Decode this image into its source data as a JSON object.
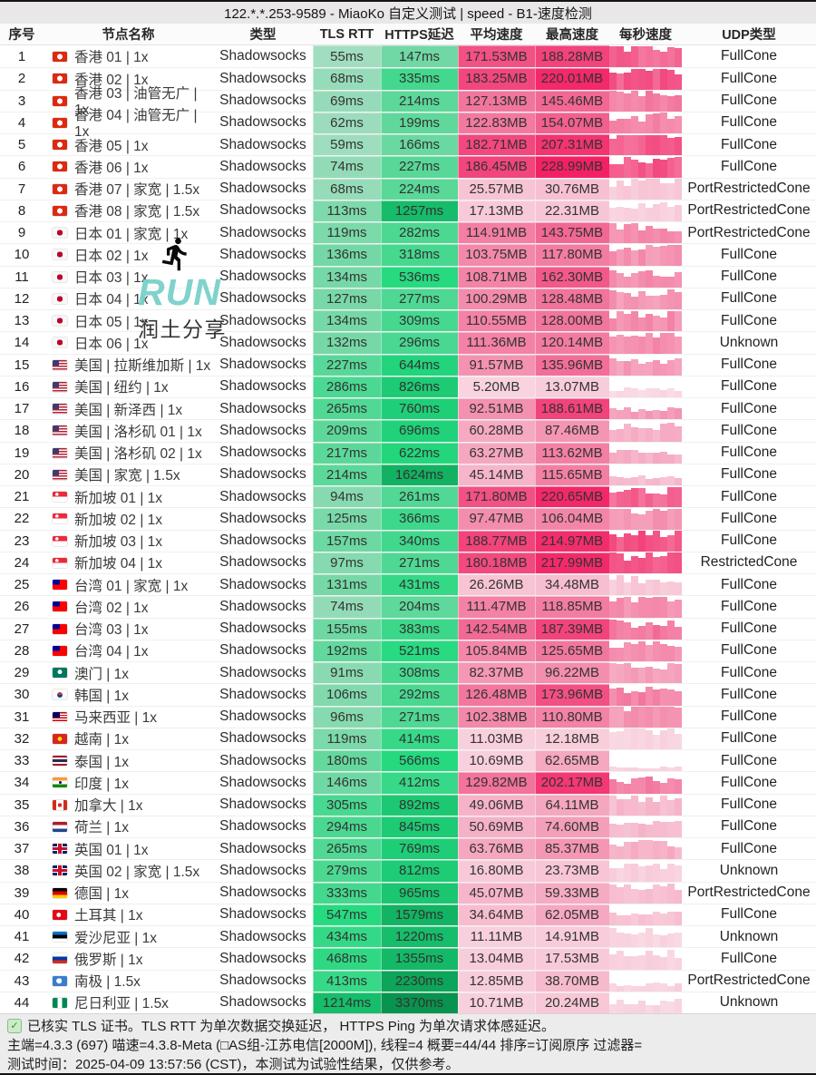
{
  "title": "122.*.*.253-9589 - MiaoKo 自定义测试 | speed - B1-速度检测",
  "columns": [
    {
      "key": "seq",
      "label": "序号"
    },
    {
      "key": "name",
      "label": "节点名称"
    },
    {
      "key": "type",
      "label": "类型"
    },
    {
      "key": "tls",
      "label": "TLS RTT"
    },
    {
      "key": "https",
      "label": "HTTPS延迟"
    },
    {
      "key": "avg",
      "label": "平均速度"
    },
    {
      "key": "max",
      "label": "最高速度"
    },
    {
      "key": "bars",
      "label": "每秒速度"
    },
    {
      "key": "udp",
      "label": "UDP类型"
    }
  ],
  "rows": [
    {
      "seq": 1,
      "flag": "hk",
      "name": "香港 01 | 1x",
      "type": "Shadowsocks",
      "tls": "55ms",
      "https": "147ms",
      "avg": "171.53MB",
      "max": "188.28MB",
      "udp": "FullCone"
    },
    {
      "seq": 2,
      "flag": "hk",
      "name": "香港 02 | 1x",
      "type": "Shadowsocks",
      "tls": "68ms",
      "https": "335ms",
      "avg": "183.25MB",
      "max": "220.01MB",
      "udp": "FullCone"
    },
    {
      "seq": 3,
      "flag": "hk",
      "name": "香港 03 | 油管无广 | 1x",
      "type": "Shadowsocks",
      "tls": "69ms",
      "https": "214ms",
      "avg": "127.13MB",
      "max": "145.46MB",
      "udp": "FullCone"
    },
    {
      "seq": 4,
      "flag": "hk",
      "name": "香港 04 | 油管无广 | 1x",
      "type": "Shadowsocks",
      "tls": "62ms",
      "https": "199ms",
      "avg": "122.83MB",
      "max": "154.07MB",
      "udp": "FullCone"
    },
    {
      "seq": 5,
      "flag": "hk",
      "name": "香港 05 | 1x",
      "type": "Shadowsocks",
      "tls": "59ms",
      "https": "166ms",
      "avg": "182.71MB",
      "max": "207.31MB",
      "udp": "FullCone"
    },
    {
      "seq": 6,
      "flag": "hk",
      "name": "香港 06 | 1x",
      "type": "Shadowsocks",
      "tls": "74ms",
      "https": "227ms",
      "avg": "186.45MB",
      "max": "228.99MB",
      "udp": "FullCone"
    },
    {
      "seq": 7,
      "flag": "hk",
      "name": "香港 07 | 家宽 | 1.5x",
      "type": "Shadowsocks",
      "tls": "68ms",
      "https": "224ms",
      "avg": "25.57MB",
      "max": "30.76MB",
      "udp": "PortRestrictedCone"
    },
    {
      "seq": 8,
      "flag": "hk",
      "name": "香港 08 | 家宽 | 1.5x",
      "type": "Shadowsocks",
      "tls": "113ms",
      "https": "1257ms",
      "avg": "17.13MB",
      "max": "22.31MB",
      "udp": "PortRestrictedCone"
    },
    {
      "seq": 9,
      "flag": "jp",
      "name": "日本 01 | 家宽 | 1x",
      "type": "Shadowsocks",
      "tls": "119ms",
      "https": "282ms",
      "avg": "114.91MB",
      "max": "143.75MB",
      "udp": "PortRestrictedCone"
    },
    {
      "seq": 10,
      "flag": "jp",
      "name": "日本 02 | 1x",
      "type": "Shadowsocks",
      "tls": "136ms",
      "https": "318ms",
      "avg": "103.75MB",
      "max": "117.80MB",
      "udp": "FullCone"
    },
    {
      "seq": 11,
      "flag": "jp",
      "name": "日本 03 | 1x",
      "type": "Shadowsocks",
      "tls": "134ms",
      "https": "536ms",
      "avg": "108.71MB",
      "max": "162.30MB",
      "udp": "FullCone"
    },
    {
      "seq": 12,
      "flag": "jp",
      "name": "日本 04 | 1x",
      "type": "Shadowsocks",
      "tls": "127ms",
      "https": "277ms",
      "avg": "100.29MB",
      "max": "128.48MB",
      "udp": "FullCone"
    },
    {
      "seq": 13,
      "flag": "jp",
      "name": "日本 05 | 1x",
      "type": "Shadowsocks",
      "tls": "134ms",
      "https": "309ms",
      "avg": "110.55MB",
      "max": "128.00MB",
      "udp": "FullCone"
    },
    {
      "seq": 14,
      "flag": "jp",
      "name": "日本 06 | 1x",
      "type": "Shadowsocks",
      "tls": "132ms",
      "https": "296ms",
      "avg": "111.36MB",
      "max": "120.14MB",
      "udp": "Unknown"
    },
    {
      "seq": 15,
      "flag": "us",
      "name": "美国 | 拉斯维加斯 | 1x",
      "type": "Shadowsocks",
      "tls": "227ms",
      "https": "644ms",
      "avg": "91.57MB",
      "max": "135.96MB",
      "udp": "FullCone"
    },
    {
      "seq": 16,
      "flag": "us",
      "name": "美国 | 纽约 | 1x",
      "type": "Shadowsocks",
      "tls": "286ms",
      "https": "826ms",
      "avg": "5.20MB",
      "max": "13.07MB",
      "udp": "FullCone"
    },
    {
      "seq": 17,
      "flag": "us",
      "name": "美国 | 新泽西 | 1x",
      "type": "Shadowsocks",
      "tls": "265ms",
      "https": "760ms",
      "avg": "92.51MB",
      "max": "188.61MB",
      "udp": "FullCone"
    },
    {
      "seq": 18,
      "flag": "us",
      "name": "美国 | 洛杉矶 01 | 1x",
      "type": "Shadowsocks",
      "tls": "209ms",
      "https": "696ms",
      "avg": "60.28MB",
      "max": "87.46MB",
      "udp": "FullCone"
    },
    {
      "seq": 19,
      "flag": "us",
      "name": "美国 | 洛杉矶 02 | 1x",
      "type": "Shadowsocks",
      "tls": "217ms",
      "https": "622ms",
      "avg": "63.27MB",
      "max": "113.62MB",
      "udp": "FullCone"
    },
    {
      "seq": 20,
      "flag": "us",
      "name": "美国 | 家宽 | 1.5x",
      "type": "Shadowsocks",
      "tls": "214ms",
      "https": "1624ms",
      "avg": "45.14MB",
      "max": "115.65MB",
      "udp": "FullCone"
    },
    {
      "seq": 21,
      "flag": "sg",
      "name": "新加坡 01 | 1x",
      "type": "Shadowsocks",
      "tls": "94ms",
      "https": "261ms",
      "avg": "171.80MB",
      "max": "220.65MB",
      "udp": "FullCone"
    },
    {
      "seq": 22,
      "flag": "sg",
      "name": "新加坡 02 | 1x",
      "type": "Shadowsocks",
      "tls": "125ms",
      "https": "366ms",
      "avg": "97.47MB",
      "max": "106.04MB",
      "udp": "FullCone"
    },
    {
      "seq": 23,
      "flag": "sg",
      "name": "新加坡 03 | 1x",
      "type": "Shadowsocks",
      "tls": "157ms",
      "https": "340ms",
      "avg": "188.77MB",
      "max": "214.97MB",
      "udp": "FullCone"
    },
    {
      "seq": 24,
      "flag": "sg",
      "name": "新加坡 04 | 1x",
      "type": "Shadowsocks",
      "tls": "97ms",
      "https": "271ms",
      "avg": "180.18MB",
      "max": "217.99MB",
      "udp": "RestrictedCone"
    },
    {
      "seq": 25,
      "flag": "tw",
      "name": "台湾 01 | 家宽 | 1x",
      "type": "Shadowsocks",
      "tls": "131ms",
      "https": "431ms",
      "avg": "26.26MB",
      "max": "34.48MB",
      "udp": "FullCone"
    },
    {
      "seq": 26,
      "flag": "tw",
      "name": "台湾 02 | 1x",
      "type": "Shadowsocks",
      "tls": "74ms",
      "https": "204ms",
      "avg": "111.47MB",
      "max": "118.85MB",
      "udp": "FullCone"
    },
    {
      "seq": 27,
      "flag": "tw",
      "name": "台湾 03 | 1x",
      "type": "Shadowsocks",
      "tls": "155ms",
      "https": "383ms",
      "avg": "142.54MB",
      "max": "187.39MB",
      "udp": "FullCone"
    },
    {
      "seq": 28,
      "flag": "tw",
      "name": "台湾 04 | 1x",
      "type": "Shadowsocks",
      "tls": "192ms",
      "https": "521ms",
      "avg": "105.84MB",
      "max": "125.65MB",
      "udp": "FullCone"
    },
    {
      "seq": 29,
      "flag": "mo",
      "name": "澳门 | 1x",
      "type": "Shadowsocks",
      "tls": "91ms",
      "https": "308ms",
      "avg": "82.37MB",
      "max": "96.22MB",
      "udp": "FullCone"
    },
    {
      "seq": 30,
      "flag": "kr",
      "name": "韩国 | 1x",
      "type": "Shadowsocks",
      "tls": "106ms",
      "https": "292ms",
      "avg": "126.48MB",
      "max": "173.96MB",
      "udp": "FullCone"
    },
    {
      "seq": 31,
      "flag": "my",
      "name": "马来西亚 | 1x",
      "type": "Shadowsocks",
      "tls": "96ms",
      "https": "271ms",
      "avg": "102.38MB",
      "max": "110.80MB",
      "udp": "FullCone"
    },
    {
      "seq": 32,
      "flag": "vn",
      "name": "越南 | 1x",
      "type": "Shadowsocks",
      "tls": "119ms",
      "https": "414ms",
      "avg": "11.03MB",
      "max": "12.18MB",
      "udp": "FullCone"
    },
    {
      "seq": 33,
      "flag": "th",
      "name": "泰国 | 1x",
      "type": "Shadowsocks",
      "tls": "180ms",
      "https": "566ms",
      "avg": "10.69MB",
      "max": "62.65MB",
      "udp": "FullCone"
    },
    {
      "seq": 34,
      "flag": "in",
      "name": "印度 | 1x",
      "type": "Shadowsocks",
      "tls": "146ms",
      "https": "412ms",
      "avg": "129.82MB",
      "max": "202.17MB",
      "udp": "FullCone"
    },
    {
      "seq": 35,
      "flag": "ca",
      "name": "加拿大 | 1x",
      "type": "Shadowsocks",
      "tls": "305ms",
      "https": "892ms",
      "avg": "49.06MB",
      "max": "64.11MB",
      "udp": "FullCone"
    },
    {
      "seq": 36,
      "flag": "nl",
      "name": "荷兰 | 1x",
      "type": "Shadowsocks",
      "tls": "294ms",
      "https": "845ms",
      "avg": "50.69MB",
      "max": "74.60MB",
      "udp": "FullCone"
    },
    {
      "seq": 37,
      "flag": "gb",
      "name": "英国 01 | 1x",
      "type": "Shadowsocks",
      "tls": "265ms",
      "https": "769ms",
      "avg": "63.76MB",
      "max": "85.37MB",
      "udp": "FullCone"
    },
    {
      "seq": 38,
      "flag": "gb",
      "name": "英国 02 | 家宽 | 1.5x",
      "type": "Shadowsocks",
      "tls": "279ms",
      "https": "812ms",
      "avg": "16.80MB",
      "max": "23.73MB",
      "udp": "Unknown"
    },
    {
      "seq": 39,
      "flag": "de",
      "name": "德国 | 1x",
      "type": "Shadowsocks",
      "tls": "333ms",
      "https": "965ms",
      "avg": "45.07MB",
      "max": "59.33MB",
      "udp": "PortRestrictedCone"
    },
    {
      "seq": 40,
      "flag": "tr",
      "name": "土耳其 | 1x",
      "type": "Shadowsocks",
      "tls": "547ms",
      "https": "1579ms",
      "avg": "34.64MB",
      "max": "62.05MB",
      "udp": "FullCone"
    },
    {
      "seq": 41,
      "flag": "ee",
      "name": "爱沙尼亚 | 1x",
      "type": "Shadowsocks",
      "tls": "434ms",
      "https": "1220ms",
      "avg": "11.11MB",
      "max": "14.91MB",
      "udp": "Unknown"
    },
    {
      "seq": 42,
      "flag": "ru",
      "name": "俄罗斯 | 1x",
      "type": "Shadowsocks",
      "tls": "468ms",
      "https": "1355ms",
      "avg": "13.04MB",
      "max": "17.53MB",
      "udp": "FullCone"
    },
    {
      "seq": 43,
      "flag": "aq",
      "name": "南极 | 1.5x",
      "type": "Shadowsocks",
      "tls": "413ms",
      "https": "2230ms",
      "avg": "12.85MB",
      "max": "38.70MB",
      "udp": "PortRestrictedCone"
    },
    {
      "seq": 44,
      "flag": "ng",
      "name": "尼日利亚 | 1.5x",
      "type": "Shadowsocks",
      "tls": "1214ms",
      "https": "3370ms",
      "avg": "10.71MB",
      "max": "20.24MB",
      "udp": "Unknown"
    }
  ],
  "watermark": {
    "run": "RUN",
    "share": "润土分享"
  },
  "footer": {
    "line1": "已核实 TLS 证书。TLS RTT 为单次数据交换延迟， HTTPS Ping 为单次请求体感延迟。",
    "line2": "主端=4.3.3 (697) 喵速=4.3.8-Meta (□AS组-江苏电信[2000M]), 线程=4 概要=44/44 排序=订阅原序 过滤器=",
    "line3": "测试时间：2025-04-09 13:57:56 (CST)，本测试为试验性结果，仅供参考。"
  },
  "colors": {
    "latency_green_light": "#a2ddbf",
    "latency_green_dark": "#08914c",
    "speed_pink_light": "#f7dce5",
    "speed_pink_dark": "#f32164",
    "titlebar_bg": "#e9e7e8",
    "footer_bg": "#ececec",
    "watermark_teal": "#78d1c9",
    "check_green": "#2f8f3b"
  }
}
